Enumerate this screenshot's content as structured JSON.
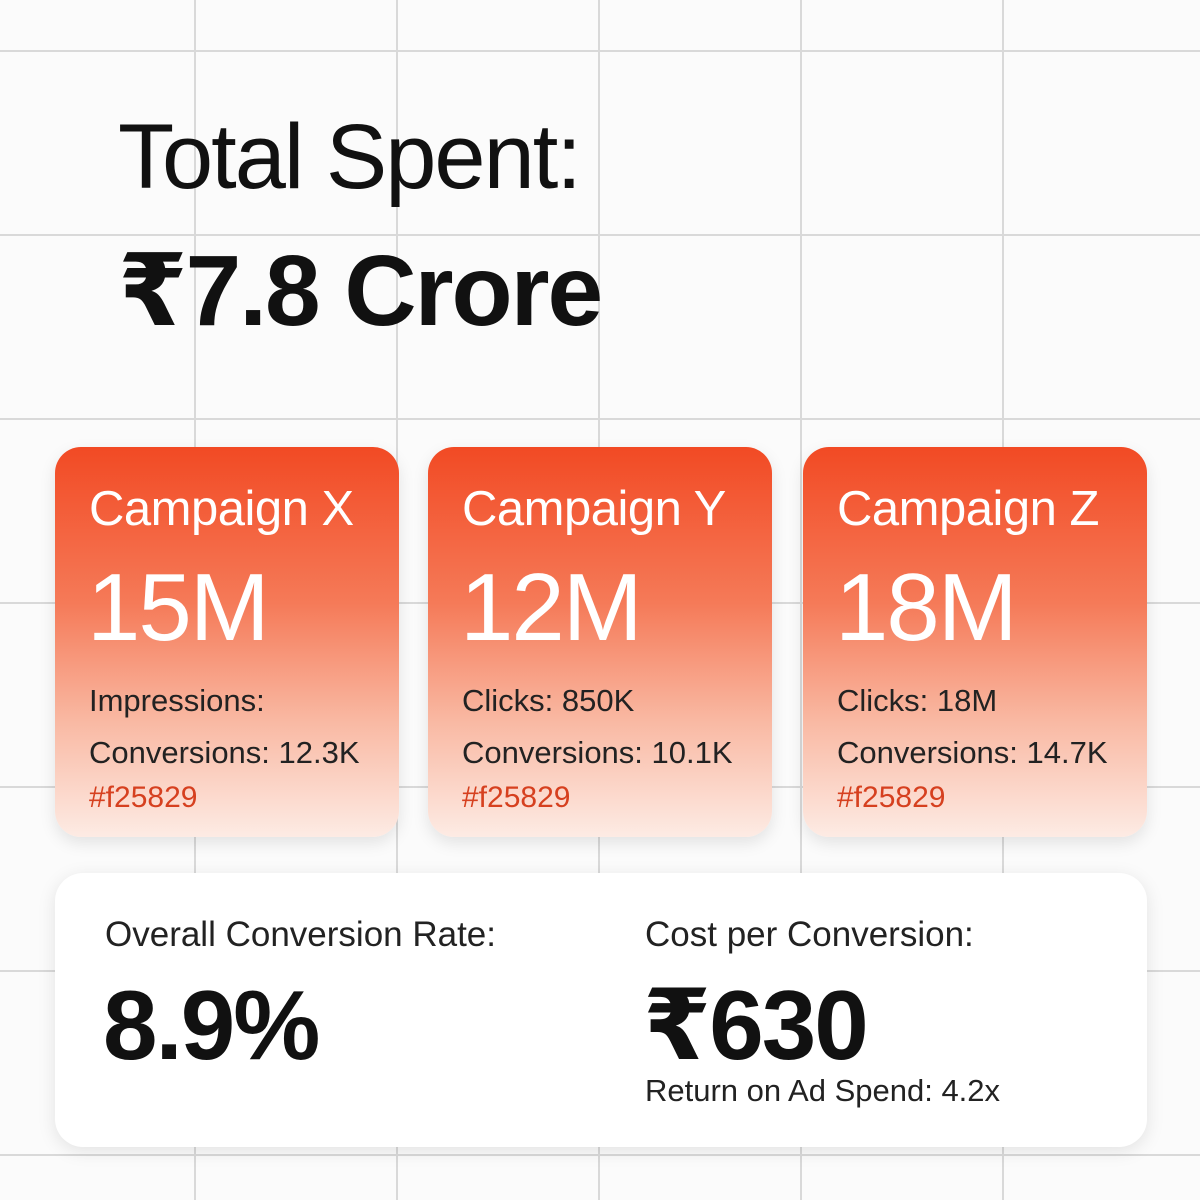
{
  "header": {
    "title": "Total Spent:",
    "value": "₹7.8 Crore"
  },
  "cards": [
    {
      "title": "Campaign X",
      "value": "15M",
      "line1": "Impressions:",
      "line2": "Conversions: 12.3K",
      "color_code": "#f25829"
    },
    {
      "title": "Campaign Y",
      "value": "12M",
      "line1": "Clicks: 850K",
      "line2": "Conversions: 10.1K",
      "color_code": "#f25829"
    },
    {
      "title": "Campaign Z",
      "value": "18M",
      "line1": "Clicks: 18M",
      "line2": "Conversions: 14.7K",
      "color_code": "#f25829"
    }
  ],
  "summary": {
    "conversion_rate_label": "Overall Conversion Rate:",
    "conversion_rate": "8.9%",
    "cost_label": "Cost per Conversion:",
    "cost": "₹630",
    "roas": "Return on Ad Spend: 4.2x"
  }
}
